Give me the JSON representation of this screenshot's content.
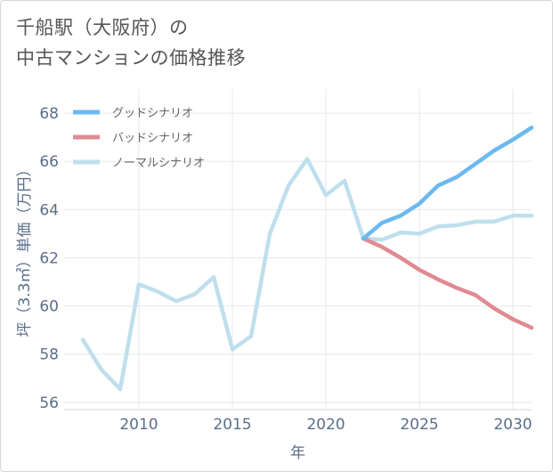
{
  "chart_data": {
    "type": "line",
    "title_line1": "千船駅（大阪府）の",
    "title_line2": "中古マンションの価格推移",
    "xlabel": "年",
    "ylabel": "坪（3.3㎡）単価（万円）",
    "xlim": [
      2006,
      2031
    ],
    "ylim": [
      55.7,
      69
    ],
    "xticks": [
      2010,
      2015,
      2020,
      2025,
      2030
    ],
    "yticks": [
      56,
      58,
      60,
      62,
      64,
      66,
      68
    ],
    "grid": true,
    "legend_position": "top-left",
    "series": [
      {
        "name": "グッドシナリオ",
        "color": "#6cb9ef",
        "x": [
          2022,
          2023,
          2024,
          2025,
          2026,
          2027,
          2028,
          2029,
          2030,
          2031
        ],
        "y": [
          62.8,
          63.45,
          63.75,
          64.25,
          65.0,
          65.35,
          65.9,
          66.45,
          66.9,
          67.4
        ]
      },
      {
        "name": "バッドシナリオ",
        "color": "#e08a92",
        "x": [
          2022,
          2023,
          2024,
          2025,
          2026,
          2027,
          2028,
          2029,
          2030,
          2031
        ],
        "y": [
          62.8,
          62.45,
          62.0,
          61.5,
          61.1,
          60.75,
          60.45,
          59.9,
          59.45,
          59.1
        ]
      },
      {
        "name": "ノーマルシナリオ",
        "color": "#bfdfec",
        "x": [
          2007,
          2008,
          2009,
          2010,
          2011,
          2012,
          2013,
          2014,
          2015,
          2016,
          2017,
          2018,
          2019,
          2020,
          2021,
          2022,
          2023,
          2024,
          2025,
          2026,
          2027,
          2028,
          2029,
          2030,
          2031
        ],
        "y": [
          58.6,
          57.35,
          56.55,
          60.9,
          60.6,
          60.2,
          60.5,
          61.2,
          58.2,
          58.75,
          63.0,
          65.0,
          66.1,
          64.6,
          65.2,
          62.8,
          62.75,
          63.05,
          63.0,
          63.3,
          63.35,
          63.5,
          63.5,
          63.75,
          63.75
        ]
      }
    ]
  }
}
